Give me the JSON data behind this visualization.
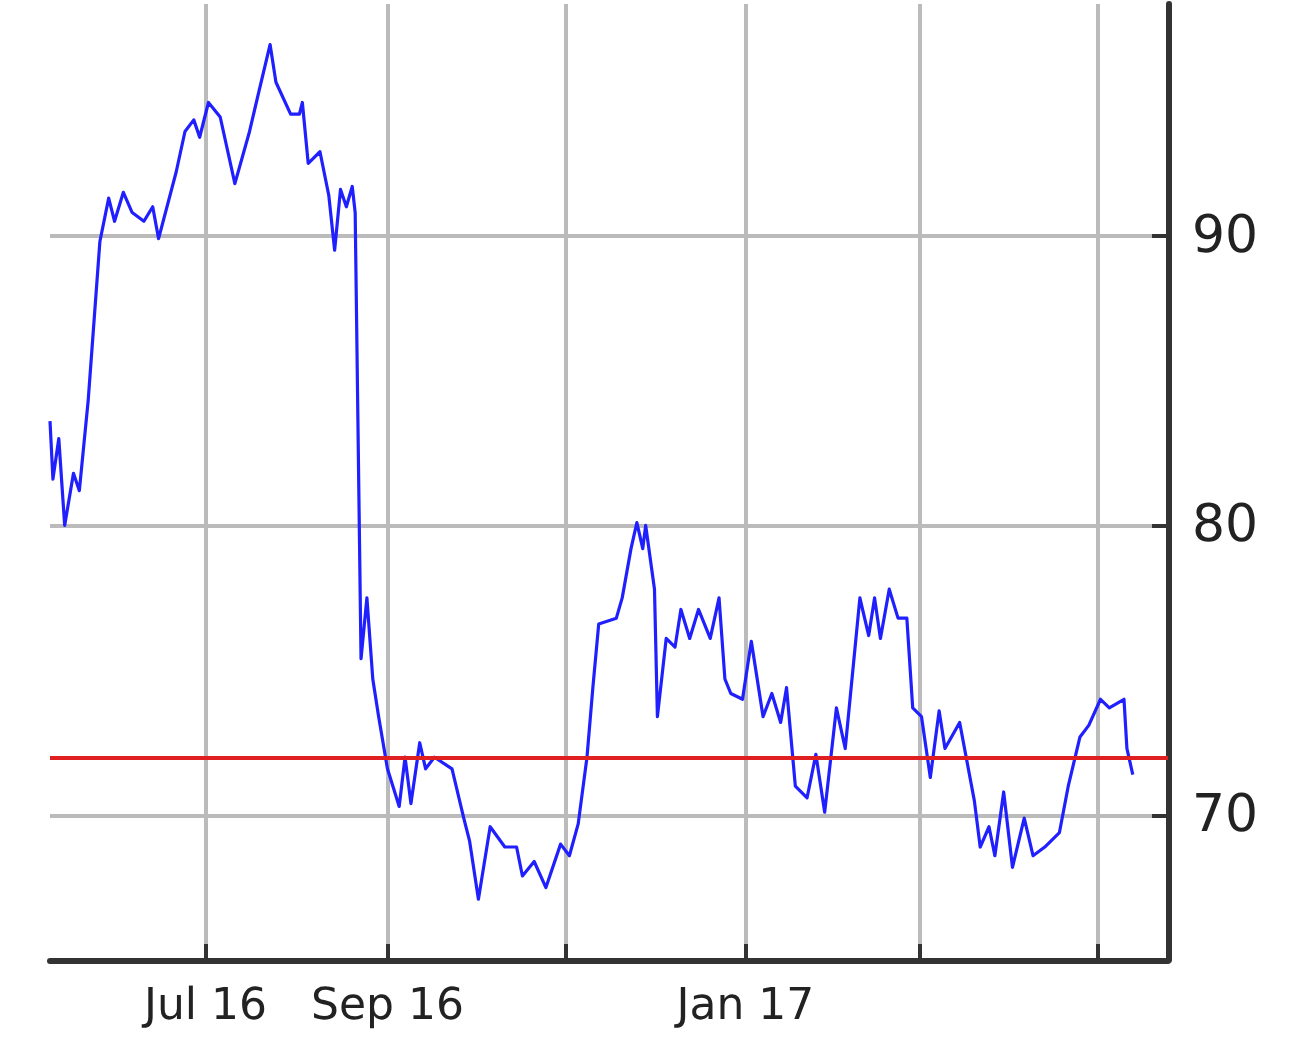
{
  "chart_data": {
    "type": "line",
    "marker": "none",
    "grid": true,
    "xlim": [
      "2016-05-09",
      "2017-05-25"
    ],
    "ylim": [
      65,
      98
    ],
    "xticks": [
      {
        "value": "2016-07-01",
        "label": "Jul 16"
      },
      {
        "value": "2016-09-01",
        "label": "Sep 16"
      },
      {
        "value": "2016-11-01",
        "label": null
      },
      {
        "value": "2017-01-01",
        "label": "Jan 17"
      },
      {
        "value": "2017-03-01",
        "label": null
      },
      {
        "value": "2017-05-01",
        "label": null
      }
    ],
    "yticks": [
      70,
      80,
      90
    ],
    "ref_lines": [
      {
        "axis": "y",
        "value": 72,
        "label": null,
        "color": "#e02020"
      }
    ],
    "series": [
      {
        "color": "#2020ff",
        "x": [
          "2016-05-09",
          "2016-05-10",
          "2016-05-12",
          "2016-05-14",
          "2016-05-17",
          "2016-05-19",
          "2016-05-22",
          "2016-05-26",
          "2016-05-29",
          "2016-05-31",
          "2016-06-03",
          "2016-06-06",
          "2016-06-10",
          "2016-06-13",
          "2016-06-15",
          "2016-06-21",
          "2016-06-24",
          "2016-06-27",
          "2016-06-29",
          "2016-07-02",
          "2016-07-06",
          "2016-07-11",
          "2016-07-16",
          "2016-07-19",
          "2016-07-23",
          "2016-07-25",
          "2016-07-30",
          "2016-08-02",
          "2016-08-03",
          "2016-08-05",
          "2016-08-09",
          "2016-08-12",
          "2016-08-14",
          "2016-08-16",
          "2016-08-18",
          "2016-08-20",
          "2016-08-21",
          "2016-08-23",
          "2016-08-25",
          "2016-08-27",
          "2016-08-29",
          "2016-09-01",
          "2016-09-05",
          "2016-09-07",
          "2016-09-09",
          "2016-09-12",
          "2016-09-14",
          "2016-09-17",
          "2016-09-23",
          "2016-09-27",
          "2016-09-29",
          "2016-10-02",
          "2016-10-06",
          "2016-10-11",
          "2016-10-15",
          "2016-10-17",
          "2016-10-21",
          "2016-10-25",
          "2016-10-30",
          "2016-11-02",
          "2016-11-05",
          "2016-11-08",
          "2016-11-10",
          "2016-11-12",
          "2016-11-18",
          "2016-11-20",
          "2016-11-23",
          "2016-11-25",
          "2016-11-27",
          "2016-11-28",
          "2016-12-01",
          "2016-12-02",
          "2016-12-05",
          "2016-12-08",
          "2016-12-10",
          "2016-12-13",
          "2016-12-16",
          "2016-12-20",
          "2016-12-23",
          "2016-12-25",
          "2016-12-27",
          "2016-12-31",
          "2017-01-03",
          "2017-01-07",
          "2017-01-10",
          "2017-01-13",
          "2017-01-15",
          "2017-01-18",
          "2017-01-22",
          "2017-01-25",
          "2017-01-28",
          "2017-02-01",
          "2017-02-04",
          "2017-02-09",
          "2017-02-12",
          "2017-02-14",
          "2017-02-16",
          "2017-02-19",
          "2017-02-22",
          "2017-02-25",
          "2017-02-27",
          "2017-03-02",
          "2017-03-05",
          "2017-03-08",
          "2017-03-10",
          "2017-03-15",
          "2017-03-20",
          "2017-03-22",
          "2017-03-25",
          "2017-03-27",
          "2017-03-30",
          "2017-04-02",
          "2017-04-06",
          "2017-04-09",
          "2017-04-13",
          "2017-04-18",
          "2017-04-21",
          "2017-04-25",
          "2017-04-28",
          "2017-05-02",
          "2017-05-05",
          "2017-05-10",
          "2017-05-11",
          "2017-05-13"
        ],
        "values": [
          83.6,
          81.6,
          83,
          80,
          81.8,
          81.2,
          84.3,
          89.8,
          91.3,
          90.5,
          91.5,
          90.8,
          90.5,
          91,
          89.9,
          92.2,
          93.6,
          94,
          93.4,
          94.6,
          94.1,
          91.8,
          93.6,
          94.9,
          96.6,
          95.3,
          94.2,
          94.2,
          94.6,
          92.5,
          92.9,
          91.4,
          89.5,
          91.6,
          91,
          91.7,
          90.8,
          75.4,
          77.5,
          74.7,
          73.4,
          71.6,
          70.3,
          72,
          70.4,
          72.5,
          71.6,
          72,
          71.6,
          69.9,
          69.1,
          67.1,
          69.6,
          68.9,
          68.9,
          67.9,
          68.4,
          67.5,
          69,
          68.6,
          69.7,
          72,
          74.4,
          76.6,
          76.8,
          77.5,
          79.2,
          80.1,
          79.2,
          80,
          77.8,
          73.4,
          76.1,
          75.8,
          77.1,
          76.1,
          77.1,
          76.1,
          77.5,
          74.7,
          74.2,
          74,
          76,
          73.4,
          74.2,
          73.2,
          74.4,
          71,
          70.6,
          72.1,
          70.1,
          73.7,
          72.3,
          77.5,
          76.2,
          77.5,
          76.1,
          77.8,
          76.8,
          76.8,
          73.7,
          73.4,
          71.3,
          73.6,
          72.3,
          73.2,
          70.5,
          68.9,
          69.6,
          68.6,
          70.8,
          68.2,
          69.9,
          68.6,
          68.9,
          69.4,
          71,
          72.7,
          73.1,
          74,
          73.7,
          74,
          72.3,
          71.4
        ]
      }
    ]
  }
}
